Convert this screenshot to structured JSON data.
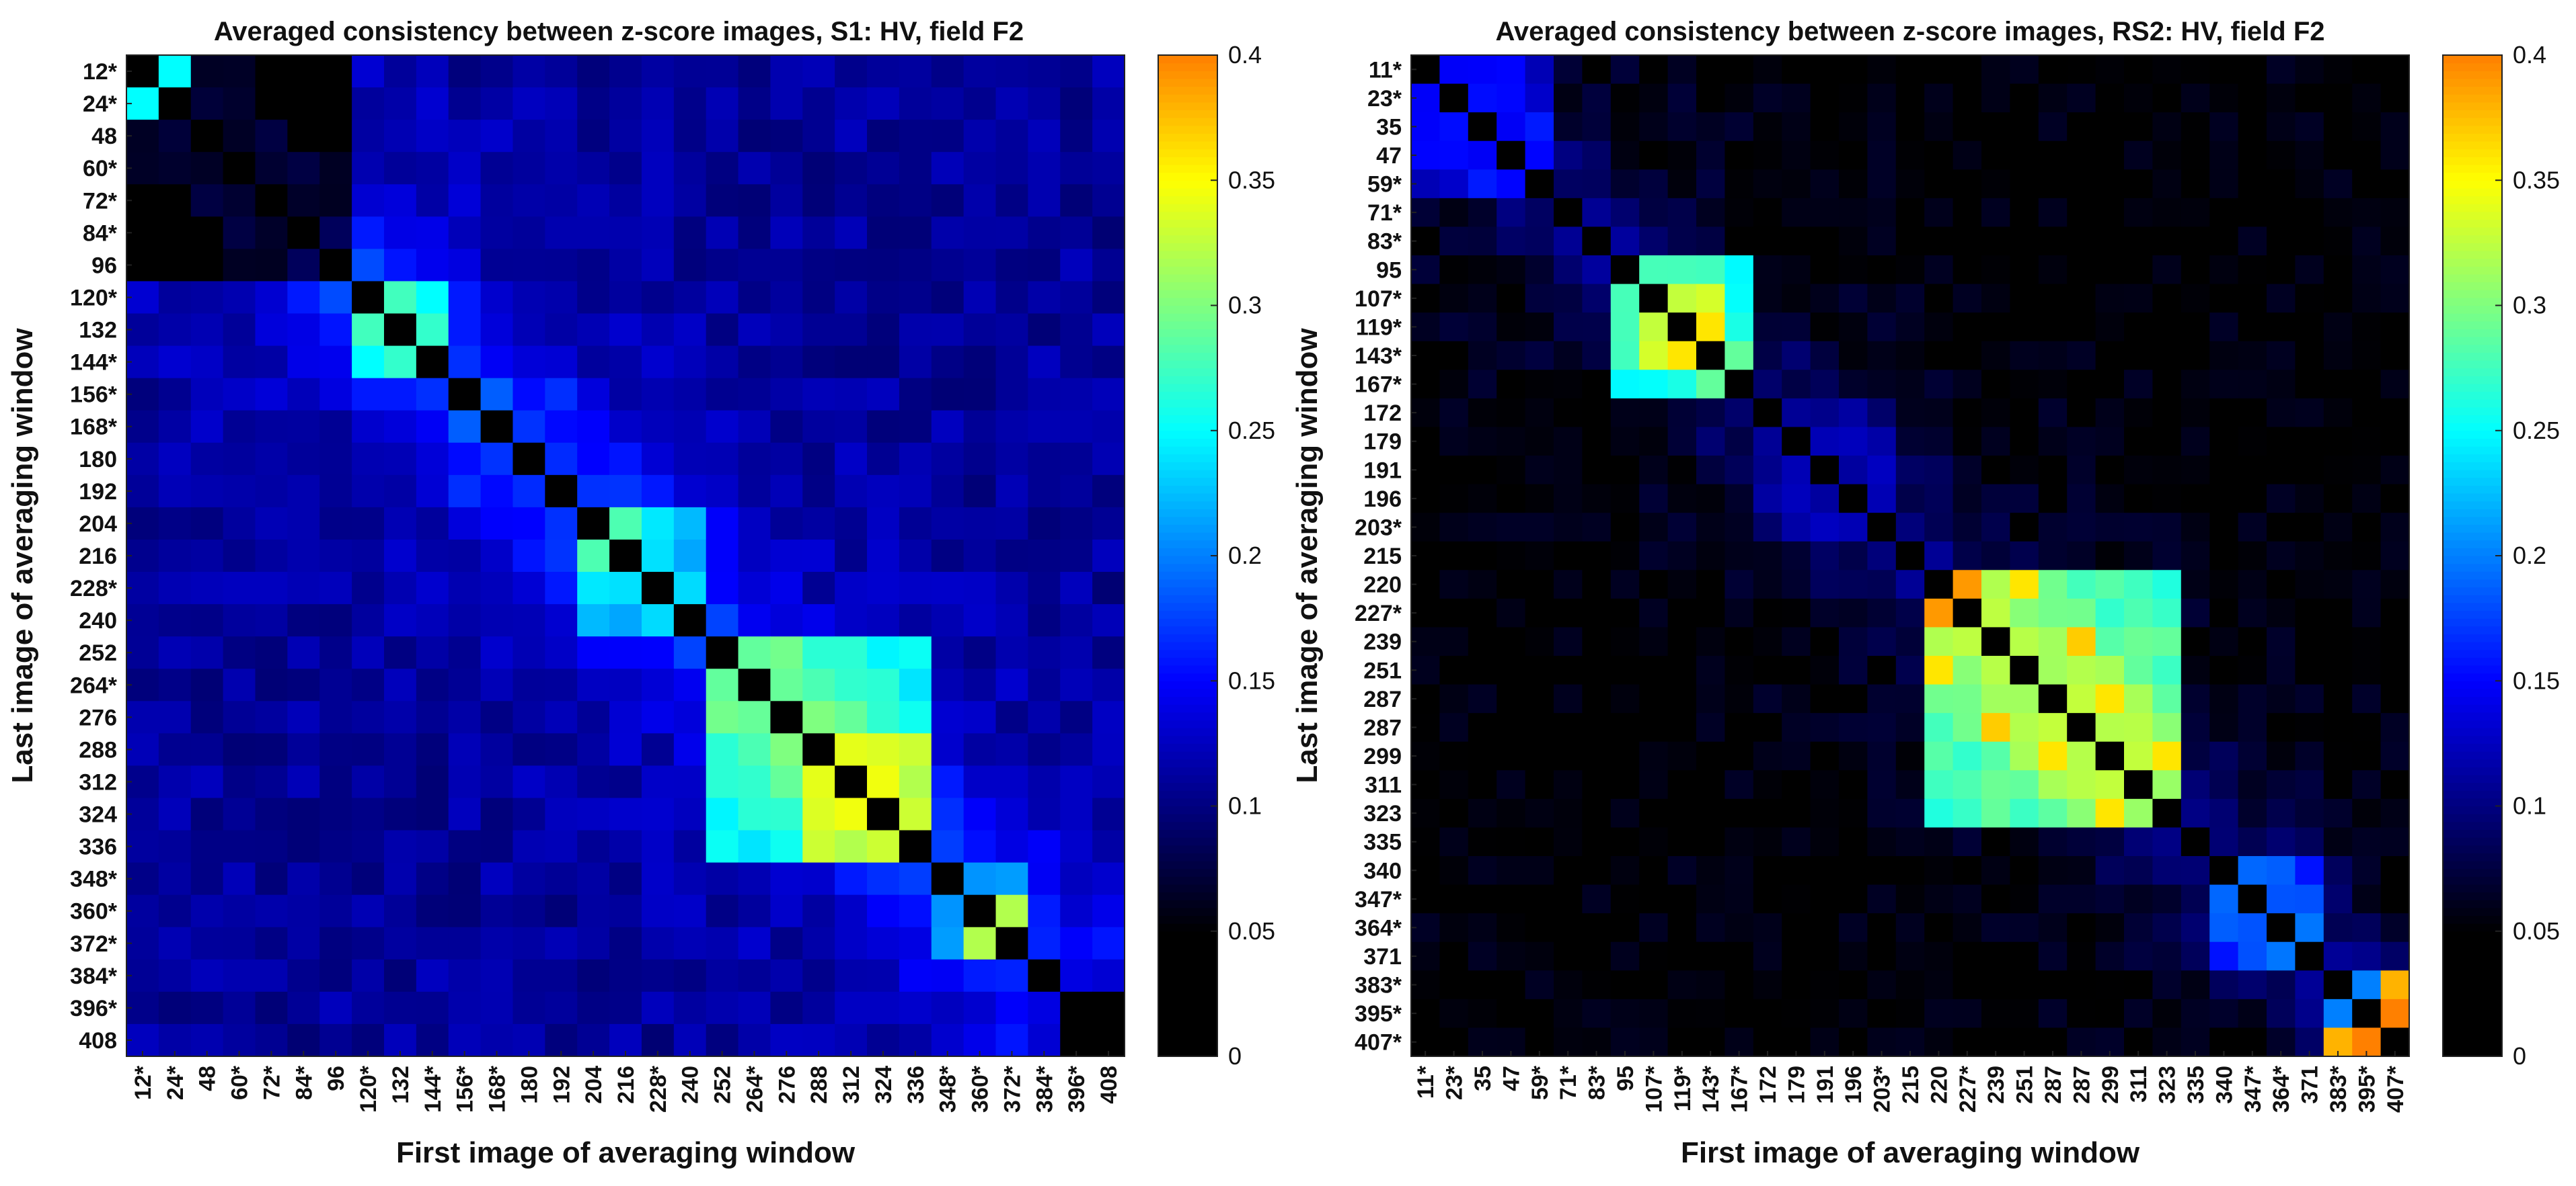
{
  "chart_data": [
    {
      "type": "heatmap",
      "title": "Averaged consistency between z-score images, S1: HV, field F2",
      "xlabel": "First image of averaging window",
      "ylabel": "Last image of averaging window",
      "labels": [
        "12*",
        "24*",
        "48",
        "60*",
        "72*",
        "84*",
        "96",
        "120*",
        "132",
        "144*",
        "156*",
        "168*",
        "180",
        "192",
        "204",
        "216",
        "228*",
        "240",
        "252",
        "264*",
        "276",
        "288",
        "312",
        "324",
        "336",
        "348*",
        "360*",
        "372*",
        "384*",
        "396*",
        "408"
      ],
      "colorbar": {
        "min": 0,
        "max": 0.4,
        "ticks": [
          "0",
          "0.05",
          "0.1",
          "0.15",
          "0.2",
          "0.25",
          "0.3",
          "0.35",
          "0.4"
        ],
        "colormap": "jet"
      },
      "blocks": [
        {
          "rows": [
            0,
            6
          ],
          "cols": [
            0,
            6
          ],
          "value": 0.04
        },
        {
          "rows": [
            7,
            9
          ],
          "cols": [
            7,
            9
          ],
          "value": 0.24
        },
        {
          "rows": [
            10,
            13
          ],
          "cols": [
            10,
            13
          ],
          "value": 0.14
        },
        {
          "rows": [
            14,
            17
          ],
          "cols": [
            14,
            17
          ],
          "value": 0.2
        },
        {
          "rows": [
            18,
            24
          ],
          "cols": [
            18,
            24
          ],
          "value": 0.26
        },
        {
          "rows": [
            21,
            24
          ],
          "cols": [
            21,
            24
          ],
          "value": 0.3
        },
        {
          "rows": [
            25,
            27
          ],
          "cols": [
            25,
            27
          ],
          "value": 0.18
        },
        {
          "rows": [
            28,
            30
          ],
          "cols": [
            28,
            30
          ],
          "value": 0.1
        }
      ],
      "hotspots": [
        {
          "r": 0,
          "c": 1,
          "value": 0.25
        },
        {
          "r": 8,
          "c": 9,
          "value": 0.27
        },
        {
          "r": 7,
          "c": 9,
          "value": 0.25
        },
        {
          "r": 14,
          "c": 15,
          "value": 0.28
        },
        {
          "r": 21,
          "c": 22,
          "value": 0.34
        },
        {
          "r": 22,
          "c": 24,
          "value": 0.32
        },
        {
          "r": 23,
          "c": 24,
          "value": 0.33
        },
        {
          "r": 19,
          "c": 20,
          "value": 0.29
        },
        {
          "r": 26,
          "c": 27,
          "value": 0.32
        },
        {
          "r": 29,
          "c": 30,
          "value": 0.03
        }
      ],
      "offdiag_value": 0.13,
      "near_diag_boost": 0.05
    },
    {
      "type": "heatmap",
      "title": "Averaged consistency between z-score images, RS2: HV, field F2",
      "xlabel": "First image of averaging window",
      "ylabel": "Last image of averaging window",
      "labels": [
        "11*",
        "23*",
        "35",
        "47",
        "59*",
        "71*",
        "83*",
        "95",
        "107*",
        "119*",
        "143*",
        "167*",
        "172",
        "179",
        "191",
        "196",
        "203*",
        "215",
        "220",
        "227*",
        "239",
        "251",
        "287",
        "287",
        "299",
        "311",
        "323",
        "335",
        "340",
        "347*",
        "364*",
        "371",
        "383*",
        "395*",
        "407*"
      ],
      "colorbar": {
        "min": 0,
        "max": 0.4,
        "ticks": [
          "0",
          "0.05",
          "0.1",
          "0.15",
          "0.2",
          "0.25",
          "0.3",
          "0.35",
          "0.4"
        ],
        "colormap": "jet"
      },
      "blocks": [
        {
          "rows": [
            0,
            4
          ],
          "cols": [
            0,
            4
          ],
          "value": 0.13
        },
        {
          "rows": [
            7,
            11
          ],
          "cols": [
            7,
            11
          ],
          "value": 0.25
        },
        {
          "rows": [
            8,
            10
          ],
          "cols": [
            8,
            10
          ],
          "value": 0.31
        },
        {
          "rows": [
            12,
            16
          ],
          "cols": [
            12,
            16
          ],
          "value": 0.09
        },
        {
          "rows": [
            18,
            26
          ],
          "cols": [
            18,
            26
          ],
          "value": 0.29
        },
        {
          "rows": [
            28,
            31
          ],
          "cols": [
            28,
            31
          ],
          "value": 0.16
        },
        {
          "rows": [
            32,
            34
          ],
          "cols": [
            32,
            34
          ],
          "value": 0.12
        }
      ],
      "hotspots": [
        {
          "r": 9,
          "c": 10,
          "value": 0.36
        },
        {
          "r": 18,
          "c": 19,
          "value": 0.39
        },
        {
          "r": 18,
          "c": 21,
          "value": 0.36
        },
        {
          "r": 20,
          "c": 23,
          "value": 0.37
        },
        {
          "r": 22,
          "c": 24,
          "value": 0.36
        },
        {
          "r": 24,
          "c": 26,
          "value": 0.36
        },
        {
          "r": 33,
          "c": 34,
          "value": 0.4
        },
        {
          "r": 32,
          "c": 34,
          "value": 0.38
        },
        {
          "r": 32,
          "c": 33,
          "value": 0.2
        }
      ],
      "offdiag_value": 0.07,
      "near_diag_boost": 0.04
    }
  ]
}
